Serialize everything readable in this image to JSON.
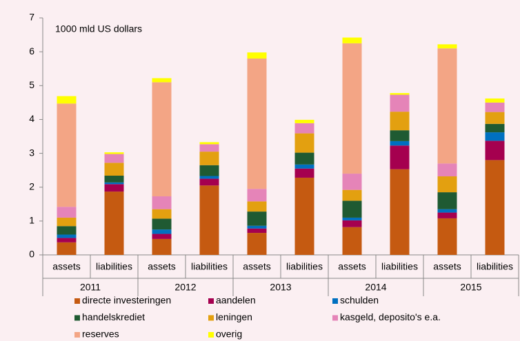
{
  "chart_data": {
    "type": "stacked-bar",
    "annotation": "1000 mld US dollars",
    "categories": [
      "assets",
      "liabilities",
      "assets",
      "liabilities",
      "assets",
      "liabilities",
      "assets",
      "liabilities",
      "assets",
      "liabilities"
    ],
    "groups": [
      "2011",
      "2012",
      "2013",
      "2014",
      "2015"
    ],
    "series": [
      {
        "name": "directe investeringen",
        "color": "#c55a11",
        "values": [
          0.37,
          1.87,
          0.47,
          2.05,
          0.65,
          2.28,
          0.82,
          2.53,
          1.08,
          2.8
        ]
      },
      {
        "name": "aandelen",
        "color": "#a5004f",
        "values": [
          0.13,
          0.22,
          0.15,
          0.2,
          0.13,
          0.27,
          0.2,
          0.7,
          0.17,
          0.57
        ]
      },
      {
        "name": "schulden",
        "color": "#0070c0",
        "values": [
          0.1,
          0.05,
          0.13,
          0.08,
          0.08,
          0.12,
          0.08,
          0.13,
          0.1,
          0.25
        ]
      },
      {
        "name": "handelskrediet",
        "color": "#1f5a32",
        "values": [
          0.25,
          0.2,
          0.32,
          0.32,
          0.42,
          0.35,
          0.5,
          0.32,
          0.5,
          0.25
        ]
      },
      {
        "name": "leningen",
        "color": "#e3a010",
        "values": [
          0.25,
          0.38,
          0.28,
          0.4,
          0.3,
          0.57,
          0.32,
          0.55,
          0.47,
          0.35
        ]
      },
      {
        "name": "kasgeld, deposito's e.a.",
        "color": "#e584b8",
        "values": [
          0.32,
          0.26,
          0.38,
          0.22,
          0.37,
          0.3,
          0.48,
          0.5,
          0.38,
          0.28
        ]
      },
      {
        "name": "reserves",
        "color": "#f3a585",
        "values": [
          3.05,
          0,
          3.37,
          0,
          3.85,
          0,
          3.85,
          0,
          3.4,
          0
        ]
      },
      {
        "name": "overig",
        "color": "#ffff00",
        "values": [
          0.22,
          0.05,
          0.12,
          0.06,
          0.18,
          0.1,
          0.17,
          0.05,
          0.12,
          0.12
        ]
      }
    ],
    "ylim": [
      0,
      7
    ],
    "yticks": [
      0,
      1,
      2,
      3,
      4,
      5,
      6,
      7
    ]
  }
}
